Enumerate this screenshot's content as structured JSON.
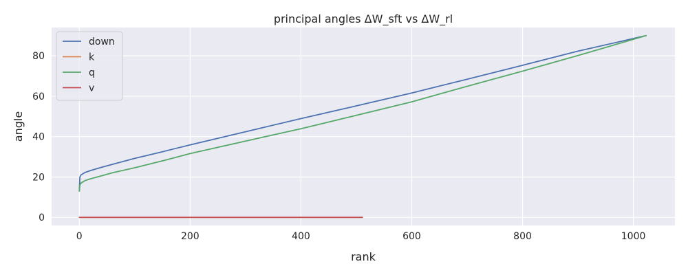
{
  "chart_data": {
    "type": "line",
    "title": "principal angles ΔW_sft vs ΔW_rl",
    "xlabel": "rank",
    "ylabel": "angle",
    "xlim": [
      -50,
      1075
    ],
    "ylim": [
      -4,
      94
    ],
    "xticks": [
      0,
      200,
      400,
      600,
      800,
      1000
    ],
    "yticks": [
      0,
      20,
      40,
      60,
      80
    ],
    "grid": true,
    "legend_position": "top-left",
    "series": [
      {
        "name": "down",
        "color": "#4c72b0",
        "x": [
          0,
          1,
          3,
          10,
          20,
          40,
          60,
          100,
          150,
          200,
          300,
          400,
          500,
          600,
          700,
          800,
          900,
          1023
        ],
        "y": [
          13,
          20,
          21,
          22.2,
          23.2,
          24.8,
          26.3,
          29.2,
          32.5,
          35.9,
          42.4,
          48.9,
          55.2,
          61.6,
          68.4,
          75.3,
          82.3,
          90
        ]
      },
      {
        "name": "k",
        "color": "#dd8452",
        "x": [
          0,
          511
        ],
        "y": [
          0,
          0
        ]
      },
      {
        "name": "q",
        "color": "#55a868",
        "x": [
          0,
          1,
          3,
          10,
          20,
          40,
          60,
          100,
          150,
          200,
          300,
          400,
          500,
          600,
          700,
          800,
          900,
          1023
        ],
        "y": [
          13,
          16,
          17,
          18.2,
          19.1,
          20.6,
          22.1,
          24.6,
          28.0,
          31.6,
          37.8,
          43.9,
          50.5,
          57.2,
          64.9,
          72.4,
          80.1,
          90
        ]
      },
      {
        "name": "v",
        "color": "#c44e52",
        "x": [
          0,
          511
        ],
        "y": [
          0,
          0
        ]
      }
    ]
  }
}
